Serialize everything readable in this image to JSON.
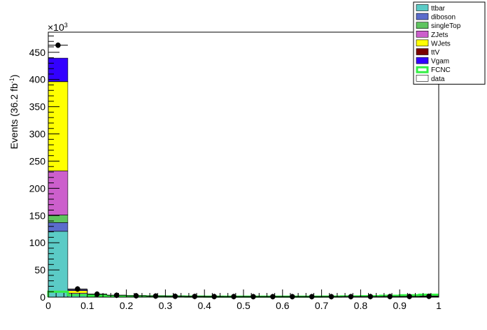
{
  "chart_data": {
    "type": "bar",
    "subtype": "stacked-histogram",
    "ylabel": "Events (36.2 fb",
    "ylabel_sup": "-1",
    "ylabel_close": ")",
    "y_multiplier": "×10",
    "y_multiplier_exp": "3",
    "xlim": [
      0,
      1
    ],
    "ylim": [
      0,
      487
    ],
    "x_ticks": [
      "0",
      "0.1",
      "0.2",
      "0.3",
      "0.4",
      "0.5",
      "0.6",
      "0.7",
      "0.8",
      "0.9",
      "1"
    ],
    "y_ticks": [
      "0",
      "50",
      "100",
      "150",
      "200",
      "250",
      "300",
      "350",
      "400",
      "450"
    ],
    "bin_edges": [
      0,
      0.05,
      0.1,
      0.15,
      0.2,
      0.25,
      0.3,
      0.35,
      0.4,
      0.45,
      0.5,
      0.55,
      0.6,
      0.65,
      0.7,
      0.75,
      0.8,
      0.85,
      0.9,
      0.95,
      1.0
    ],
    "series": [
      {
        "name": "ttbar",
        "color": "#5bcbc6",
        "values": [
          121,
          3.5,
          1.5,
          1.0,
          0.8,
          0.6,
          0.5,
          0.4,
          0.3,
          0.3,
          0.3,
          0.3,
          0.3,
          0.3,
          0.4,
          0.5,
          0.5,
          0.6,
          0.8,
          1.0
        ]
      },
      {
        "name": "diboson",
        "color": "#5b6ccc",
        "values": [
          16,
          0.6,
          0.3,
          0.2,
          0.1,
          0.1,
          0.1,
          0.1,
          0.1,
          0.1,
          0.1,
          0.1,
          0.1,
          0.1,
          0.1,
          0.1,
          0.1,
          0.1,
          0.1,
          0.1
        ]
      },
      {
        "name": "singleTop",
        "color": "#5fc45f",
        "values": [
          14,
          0.8,
          0.4,
          0.3,
          0.2,
          0.2,
          0.1,
          0.1,
          0.1,
          0.1,
          0.1,
          0.1,
          0.1,
          0.1,
          0.1,
          0.1,
          0.1,
          0.1,
          0.1,
          0.1
        ]
      },
      {
        "name": "ZJets",
        "color": "#cc5fcc",
        "values": [
          81,
          2.5,
          1.0,
          0.6,
          0.4,
          0.3,
          0.3,
          0.2,
          0.2,
          0.2,
          0.2,
          0.2,
          0.2,
          0.2,
          0.2,
          0.2,
          0.2,
          0.2,
          0.2,
          0.2
        ]
      },
      {
        "name": "WJets",
        "color": "#ffff00",
        "values": [
          164,
          4.5,
          1.8,
          1.0,
          0.7,
          0.5,
          0.4,
          0.3,
          0.3,
          0.3,
          0.3,
          0.3,
          0.3,
          0.3,
          0.3,
          0.3,
          0.3,
          0.3,
          0.3,
          0.3
        ]
      },
      {
        "name": "ttV",
        "color": "#7a0000",
        "values": [
          0.3,
          0.05,
          0.05,
          0.05,
          0.05,
          0.05,
          0.05,
          0.05,
          0.05,
          0.05,
          0.05,
          0.05,
          0.05,
          0.05,
          0.05,
          0.05,
          0.05,
          0.05,
          0.05,
          0.05
        ]
      },
      {
        "name": "Vgam",
        "color": "#3300ff",
        "values": [
          43,
          1.5,
          0.6,
          0.4,
          0.3,
          0.2,
          0.2,
          0.2,
          0.1,
          0.1,
          0.1,
          0.1,
          0.1,
          0.1,
          0.1,
          0.1,
          0.1,
          0.1,
          0.1,
          0.1
        ]
      }
    ],
    "signal": {
      "name": "FCNC",
      "color": "#33ee44",
      "values": [
        10,
        4,
        2.5,
        2,
        1.8,
        1.5,
        1.3,
        1.2,
        1.0,
        1.0,
        1.0,
        1.0,
        1.0,
        1.0,
        1.2,
        1.4,
        1.8,
        2.5,
        3.5,
        4.5
      ]
    },
    "data": {
      "name": "data",
      "values": [
        463,
        15,
        5.5,
        3.5,
        2.5,
        2,
        1.6,
        1.3,
        1.1,
        1.0,
        0.9,
        0.9,
        0.9,
        0.9,
        0.9,
        0.9,
        1.0,
        1.1,
        1.2,
        1.5
      ]
    },
    "legend_position": "top-right"
  }
}
